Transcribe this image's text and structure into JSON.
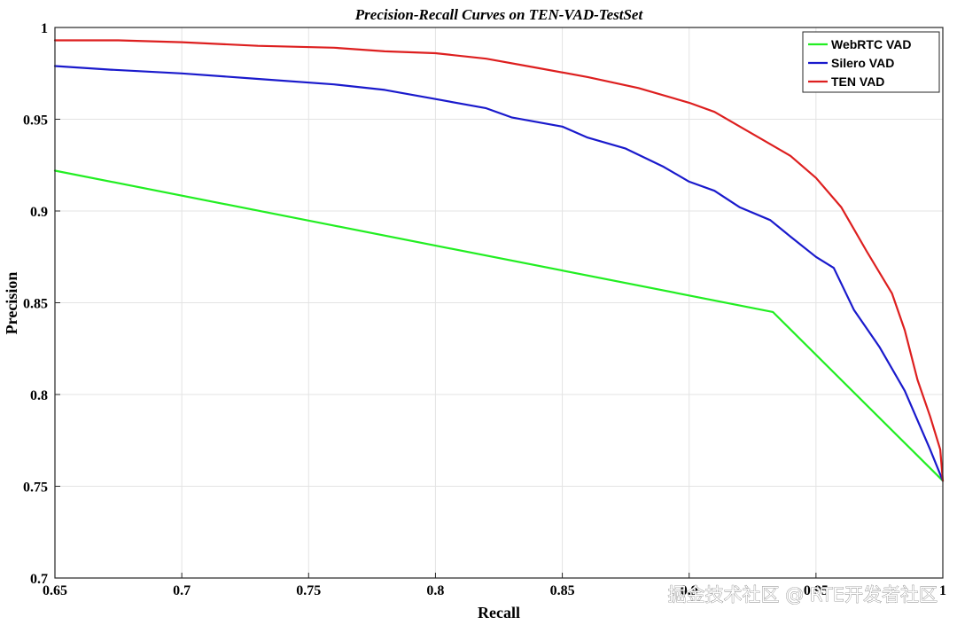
{
  "chart_data": {
    "type": "line",
    "title": "Precision-Recall Curves on TEN-VAD-TestSet",
    "xlabel": "Recall",
    "ylabel": "Precision",
    "xlim": [
      0.65,
      1
    ],
    "ylim": [
      0.7,
      1
    ],
    "xticks": [
      0.65,
      0.7,
      0.75,
      0.8,
      0.85,
      0.9,
      0.95,
      1
    ],
    "xtick_labels": [
      "0.65",
      "0.7",
      "0.75",
      "0.8",
      "0.85",
      "0.9",
      "0.95",
      "1"
    ],
    "yticks": [
      0.7,
      0.75,
      0.8,
      0.85,
      0.9,
      0.95,
      1
    ],
    "ytick_labels": [
      "0.7",
      "0.75",
      "0.8",
      "0.85",
      "0.9",
      "0.95",
      "1"
    ],
    "grid": true,
    "legend_position": "top-right",
    "series": [
      {
        "name": "WebRTC VAD",
        "color": "#22ee22",
        "x": [
          0.65,
          0.933,
          1.0
        ],
        "y": [
          0.922,
          0.845,
          0.753
        ]
      },
      {
        "name": "Silero VAD",
        "color": "#1a1acc",
        "x": [
          0.65,
          0.672,
          0.7,
          0.73,
          0.76,
          0.78,
          0.8,
          0.82,
          0.83,
          0.85,
          0.86,
          0.875,
          0.89,
          0.9,
          0.91,
          0.92,
          0.932,
          0.94,
          0.95,
          0.957,
          0.965,
          0.975,
          0.985,
          0.995,
          1.0
        ],
        "y": [
          0.979,
          0.977,
          0.975,
          0.972,
          0.969,
          0.966,
          0.961,
          0.956,
          0.951,
          0.946,
          0.94,
          0.934,
          0.924,
          0.916,
          0.911,
          0.902,
          0.895,
          0.886,
          0.875,
          0.869,
          0.846,
          0.826,
          0.802,
          0.77,
          0.753
        ]
      },
      {
        "name": "TEN VAD",
        "color": "#dd1f1f",
        "x": [
          0.65,
          0.675,
          0.7,
          0.73,
          0.76,
          0.78,
          0.8,
          0.82,
          0.84,
          0.86,
          0.88,
          0.9,
          0.91,
          0.92,
          0.93,
          0.94,
          0.95,
          0.96,
          0.97,
          0.98,
          0.985,
          0.99,
          0.995,
          0.999,
          1.0
        ],
        "y": [
          0.993,
          0.993,
          0.992,
          0.99,
          0.989,
          0.987,
          0.986,
          0.983,
          0.978,
          0.973,
          0.967,
          0.959,
          0.954,
          0.946,
          0.938,
          0.93,
          0.918,
          0.902,
          0.878,
          0.855,
          0.835,
          0.808,
          0.788,
          0.77,
          0.753
        ]
      }
    ]
  },
  "watermark": "掘金技术社区 @ RTE开发者社区"
}
